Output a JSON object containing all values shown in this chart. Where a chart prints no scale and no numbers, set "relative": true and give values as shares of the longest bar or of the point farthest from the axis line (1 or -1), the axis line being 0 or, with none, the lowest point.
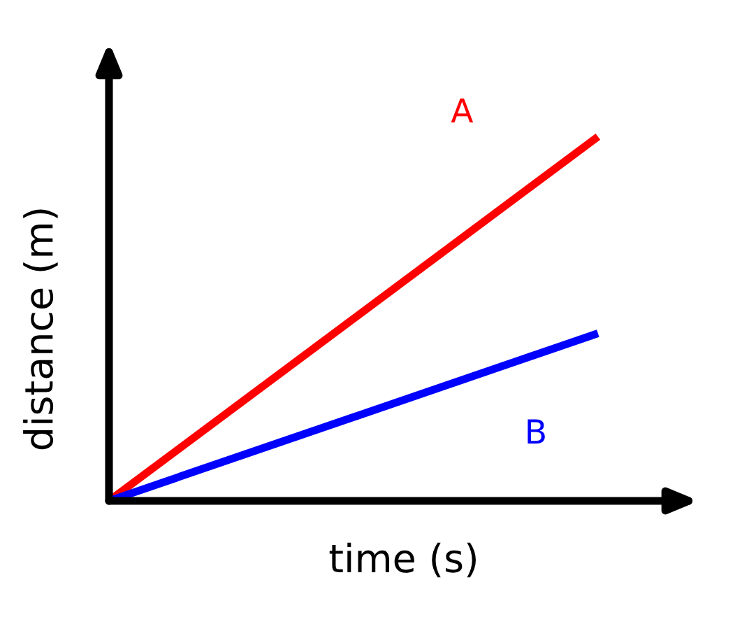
{
  "chart_data": {
    "type": "line",
    "xlabel": "time (s)",
    "ylabel": "distance (m)",
    "relative": true,
    "categories": [
      null,
      null
    ],
    "series": [
      {
        "name": "A",
        "color": "#ff0000",
        "values": [
          0,
          1
        ]
      },
      {
        "name": "B",
        "color": "#0000ff",
        "values": [
          0,
          0.46
        ]
      }
    ]
  }
}
